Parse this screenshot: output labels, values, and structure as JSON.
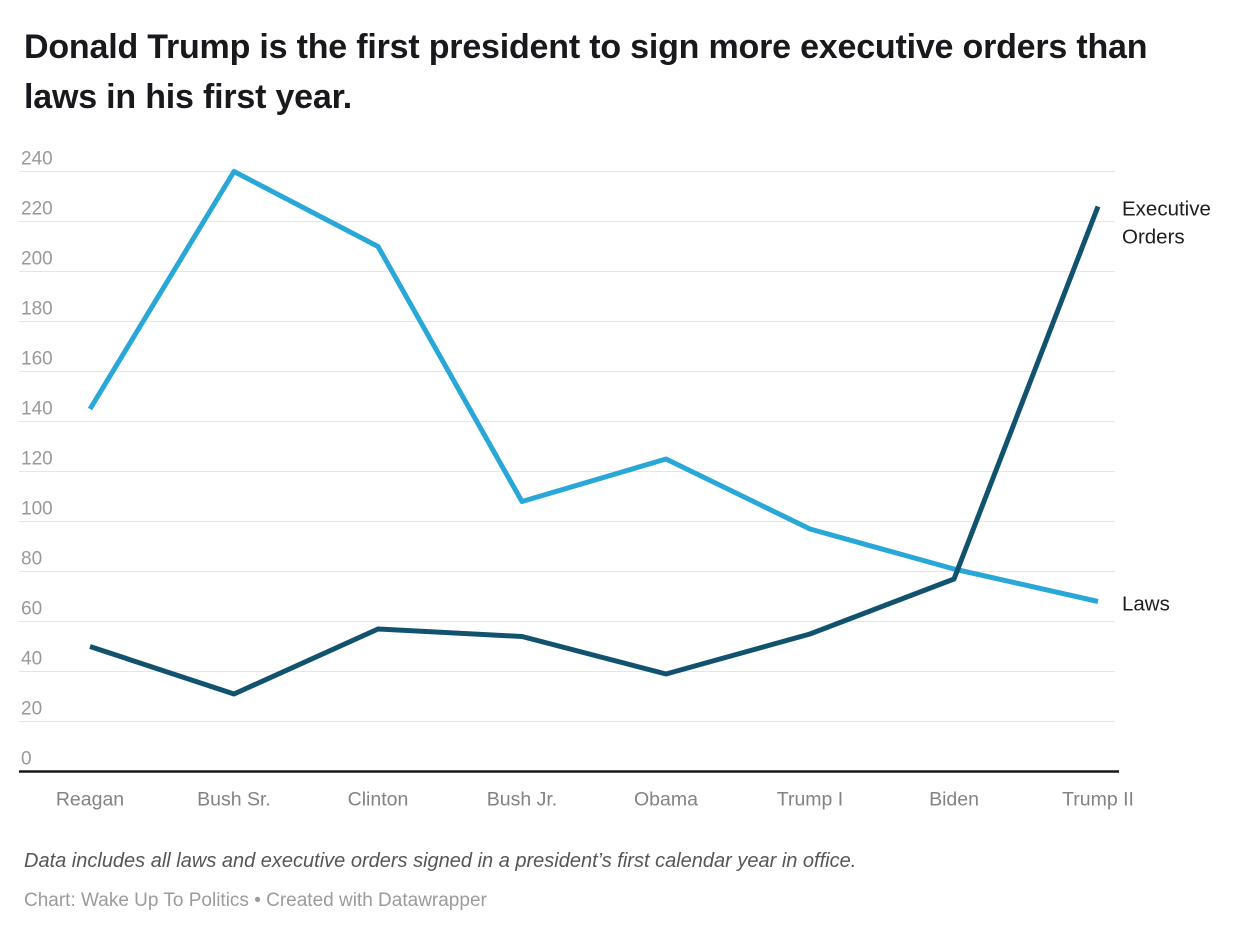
{
  "title": "Donald Trump is the first president to sign more executive orders than laws in his first year.",
  "footer": {
    "note": "Data includes all laws and executive orders signed in a president’s first calendar year in office.",
    "byline": "Chart: Wake Up To Politics • Created with Datawrapper"
  },
  "chart_data": {
    "type": "line",
    "title": "Donald Trump is the first president to sign more executive orders than laws in his first year.",
    "xlabel": "",
    "ylabel": "",
    "categories": [
      "Reagan",
      "Bush Sr.",
      "Clinton",
      "Bush Jr.",
      "Obama",
      "Trump I",
      "Biden",
      "Trump II"
    ],
    "series": [
      {
        "name": "Laws",
        "label_lines": [
          "Laws"
        ],
        "color": "#29a7d7",
        "values": [
          145,
          240,
          210,
          108,
          125,
          97,
          81,
          68
        ]
      },
      {
        "name": "Executive Orders",
        "label_lines": [
          "Executive",
          "Orders"
        ],
        "color": "#11536e",
        "values": [
          50,
          31,
          57,
          54,
          39,
          55,
          77,
          226
        ]
      }
    ],
    "ylim": [
      0,
      240
    ],
    "ytick_step": 20,
    "yticks": [
      0,
      20,
      40,
      60,
      80,
      100,
      120,
      140,
      160,
      180,
      200,
      220,
      240
    ],
    "grid": true,
    "legend_position": "direct-line-labels-right",
    "colors": {
      "grid_line": "#e6e6e6",
      "axis_line": "#18191c",
      "tick_label": "#9a9a9a",
      "x_label": "#838383",
      "series_label_text": "#1d1e20",
      "title_text": "#18191c"
    }
  }
}
